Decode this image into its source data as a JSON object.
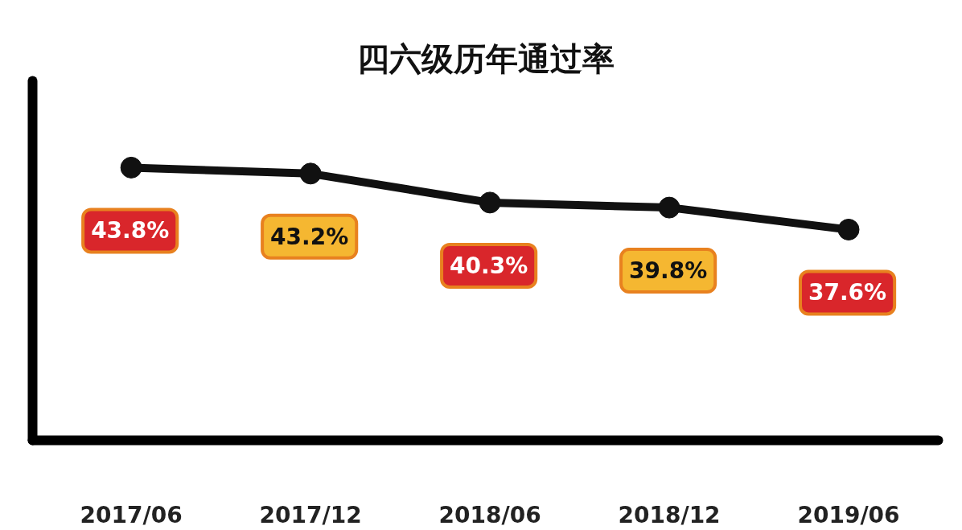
{
  "chart_data": {
    "type": "line",
    "title": "四六级历年通过率",
    "categories": [
      "2017/06",
      "2017/12",
      "2018/06",
      "2018/12",
      "2019/06"
    ],
    "series": [
      {
        "color": "#111111",
        "values": [
          43.8,
          43.2,
          40.3,
          39.8,
          37.6
        ],
        "value_labels": [
          "43.8%",
          "43.2%",
          "40.3%",
          "39.8%",
          "37.6%"
        ]
      }
    ],
    "tick_labels": "x",
    "marker": "circle"
  }
}
